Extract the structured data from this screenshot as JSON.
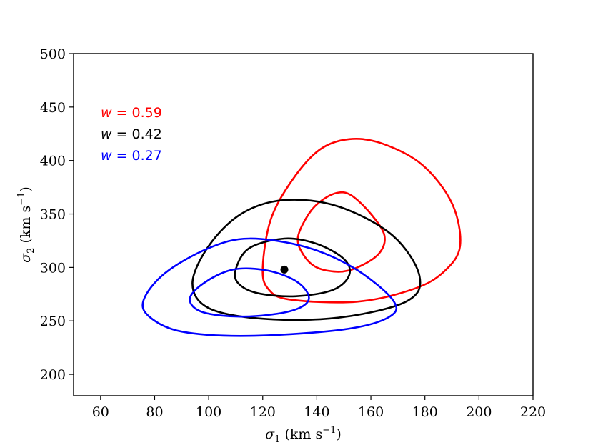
{
  "chart_data": {
    "type": "scatter",
    "title": "",
    "xlabel": {
      "main": "σ",
      "sub": "1",
      "unit_text": " (km s",
      "unit_sup": "−1",
      "close": ")"
    },
    "ylabel": {
      "main": "σ",
      "sub": "2",
      "unit_text": " (km s",
      "unit_sup": "−1",
      "close": ")"
    },
    "xlim": [
      50,
      220
    ],
    "ylim": [
      180,
      500
    ],
    "xticks": [
      60,
      80,
      100,
      120,
      140,
      160,
      180,
      200,
      220
    ],
    "yticks": [
      200,
      250,
      300,
      350,
      400,
      450,
      500
    ],
    "grid": false,
    "legend_placement": "top-left",
    "legend": [
      {
        "text": "w = 0.59",
        "var": "w",
        "eq": " = ",
        "val": "0.59",
        "color": "#ff0000"
      },
      {
        "text": "w = 0.42",
        "var": "w",
        "eq": " = ",
        "val": "0.42",
        "color": "#000000"
      },
      {
        "text": "w = 0.27",
        "var": "w",
        "eq": " = ",
        "val": "0.27",
        "color": "#0000ff"
      }
    ],
    "point": {
      "x": 128,
      "y": 298,
      "color": "#000000"
    },
    "series": [
      {
        "name": "w = 0.59",
        "color": "#ff0000",
        "contours": [
          {
            "level": "inner",
            "points": [
              [
                133,
                328
              ],
              [
                137,
                350
              ],
              [
                142,
                363
              ],
              [
                148,
                370
              ],
              [
                153,
                367
              ],
              [
                160,
                350
              ],
              [
                165,
                330
              ],
              [
                163,
                313
              ],
              [
                155,
                300
              ],
              [
                148,
                296
              ],
              [
                140,
                300
              ],
              [
                135,
                312
              ]
            ]
          },
          {
            "level": "outer",
            "points": [
              [
                120,
                300
              ],
              [
                123,
                345
              ],
              [
                131,
                382
              ],
              [
                141,
                410
              ],
              [
                152,
                420
              ],
              [
                164,
                416
              ],
              [
                179,
                396
              ],
              [
                190,
                360
              ],
              [
                193,
                320
              ],
              [
                187,
                296
              ],
              [
                176,
                280
              ],
              [
                155,
                268
              ],
              [
                130,
                270
              ],
              [
                122,
                280
              ]
            ]
          }
        ]
      },
      {
        "name": "w = 0.42",
        "color": "#000000",
        "contours": [
          {
            "level": "inner",
            "points": [
              [
                110,
                298
              ],
              [
                115,
                318
              ],
              [
                128,
                327
              ],
              [
                140,
                322
              ],
              [
                150,
                308
              ],
              [
                152,
                293
              ],
              [
                146,
                279
              ],
              [
                132,
                273
              ],
              [
                118,
                276
              ],
              [
                111,
                285
              ]
            ]
          },
          {
            "level": "outer",
            "points": [
              [
                94,
                285
              ],
              [
                100,
                320
              ],
              [
                112,
                350
              ],
              [
                128,
                363
              ],
              [
                148,
                357
              ],
              [
                168,
                330
              ],
              [
                178,
                292
              ],
              [
                173,
                268
              ],
              [
                148,
                253
              ],
              [
                120,
                252
              ],
              [
                100,
                262
              ]
            ]
          }
        ]
      },
      {
        "name": "w = 0.27",
        "color": "#0000ff",
        "contours": [
          {
            "level": "inner",
            "points": [
              [
                93,
                270
              ],
              [
                98,
                285
              ],
              [
                109,
                298
              ],
              [
                122,
                297
              ],
              [
                133,
                286
              ],
              [
                137,
                270
              ],
              [
                130,
                259
              ],
              [
                113,
                254
              ],
              [
                98,
                258
              ]
            ]
          },
          {
            "level": "outer",
            "points": [
              [
                76,
                270
              ],
              [
                84,
                295
              ],
              [
                100,
                318
              ],
              [
                115,
                327
              ],
              [
                136,
                319
              ],
              [
                154,
                299
              ],
              [
                168,
                270
              ],
              [
                167,
                254
              ],
              [
                150,
                242
              ],
              [
                115,
                236
              ],
              [
                90,
                240
              ],
              [
                78,
                254
              ]
            ]
          }
        ]
      }
    ]
  }
}
